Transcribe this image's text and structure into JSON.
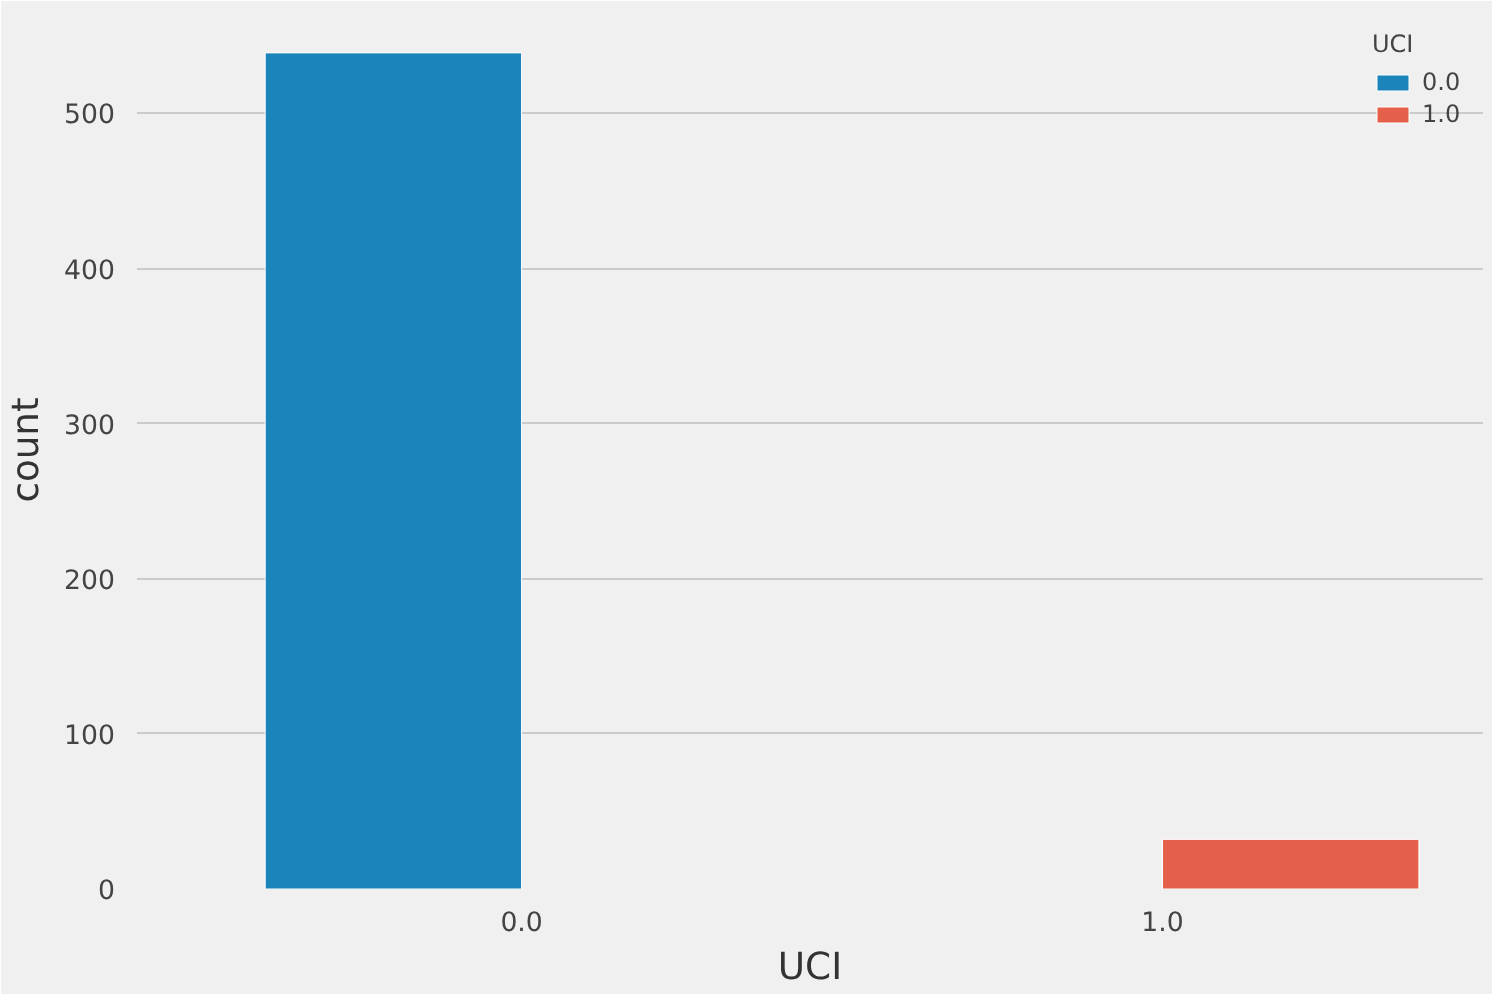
{
  "chart_data": {
    "type": "bar",
    "xlabel": "UCI",
    "ylabel": "count",
    "legend_title": "UCI",
    "categories": [
      "0.0",
      "1.0"
    ],
    "series": [
      {
        "name": "0.0",
        "color": "#1b84bb",
        "values": [
          539,
          null
        ]
      },
      {
        "name": "1.0",
        "color": "#e5604a",
        "values": [
          null,
          32
        ]
      }
    ],
    "ylim": [
      0,
      566
    ],
    "yticks": [
      0,
      100,
      200,
      300,
      400,
      500
    ],
    "grid": "y",
    "legend": "top right"
  }
}
